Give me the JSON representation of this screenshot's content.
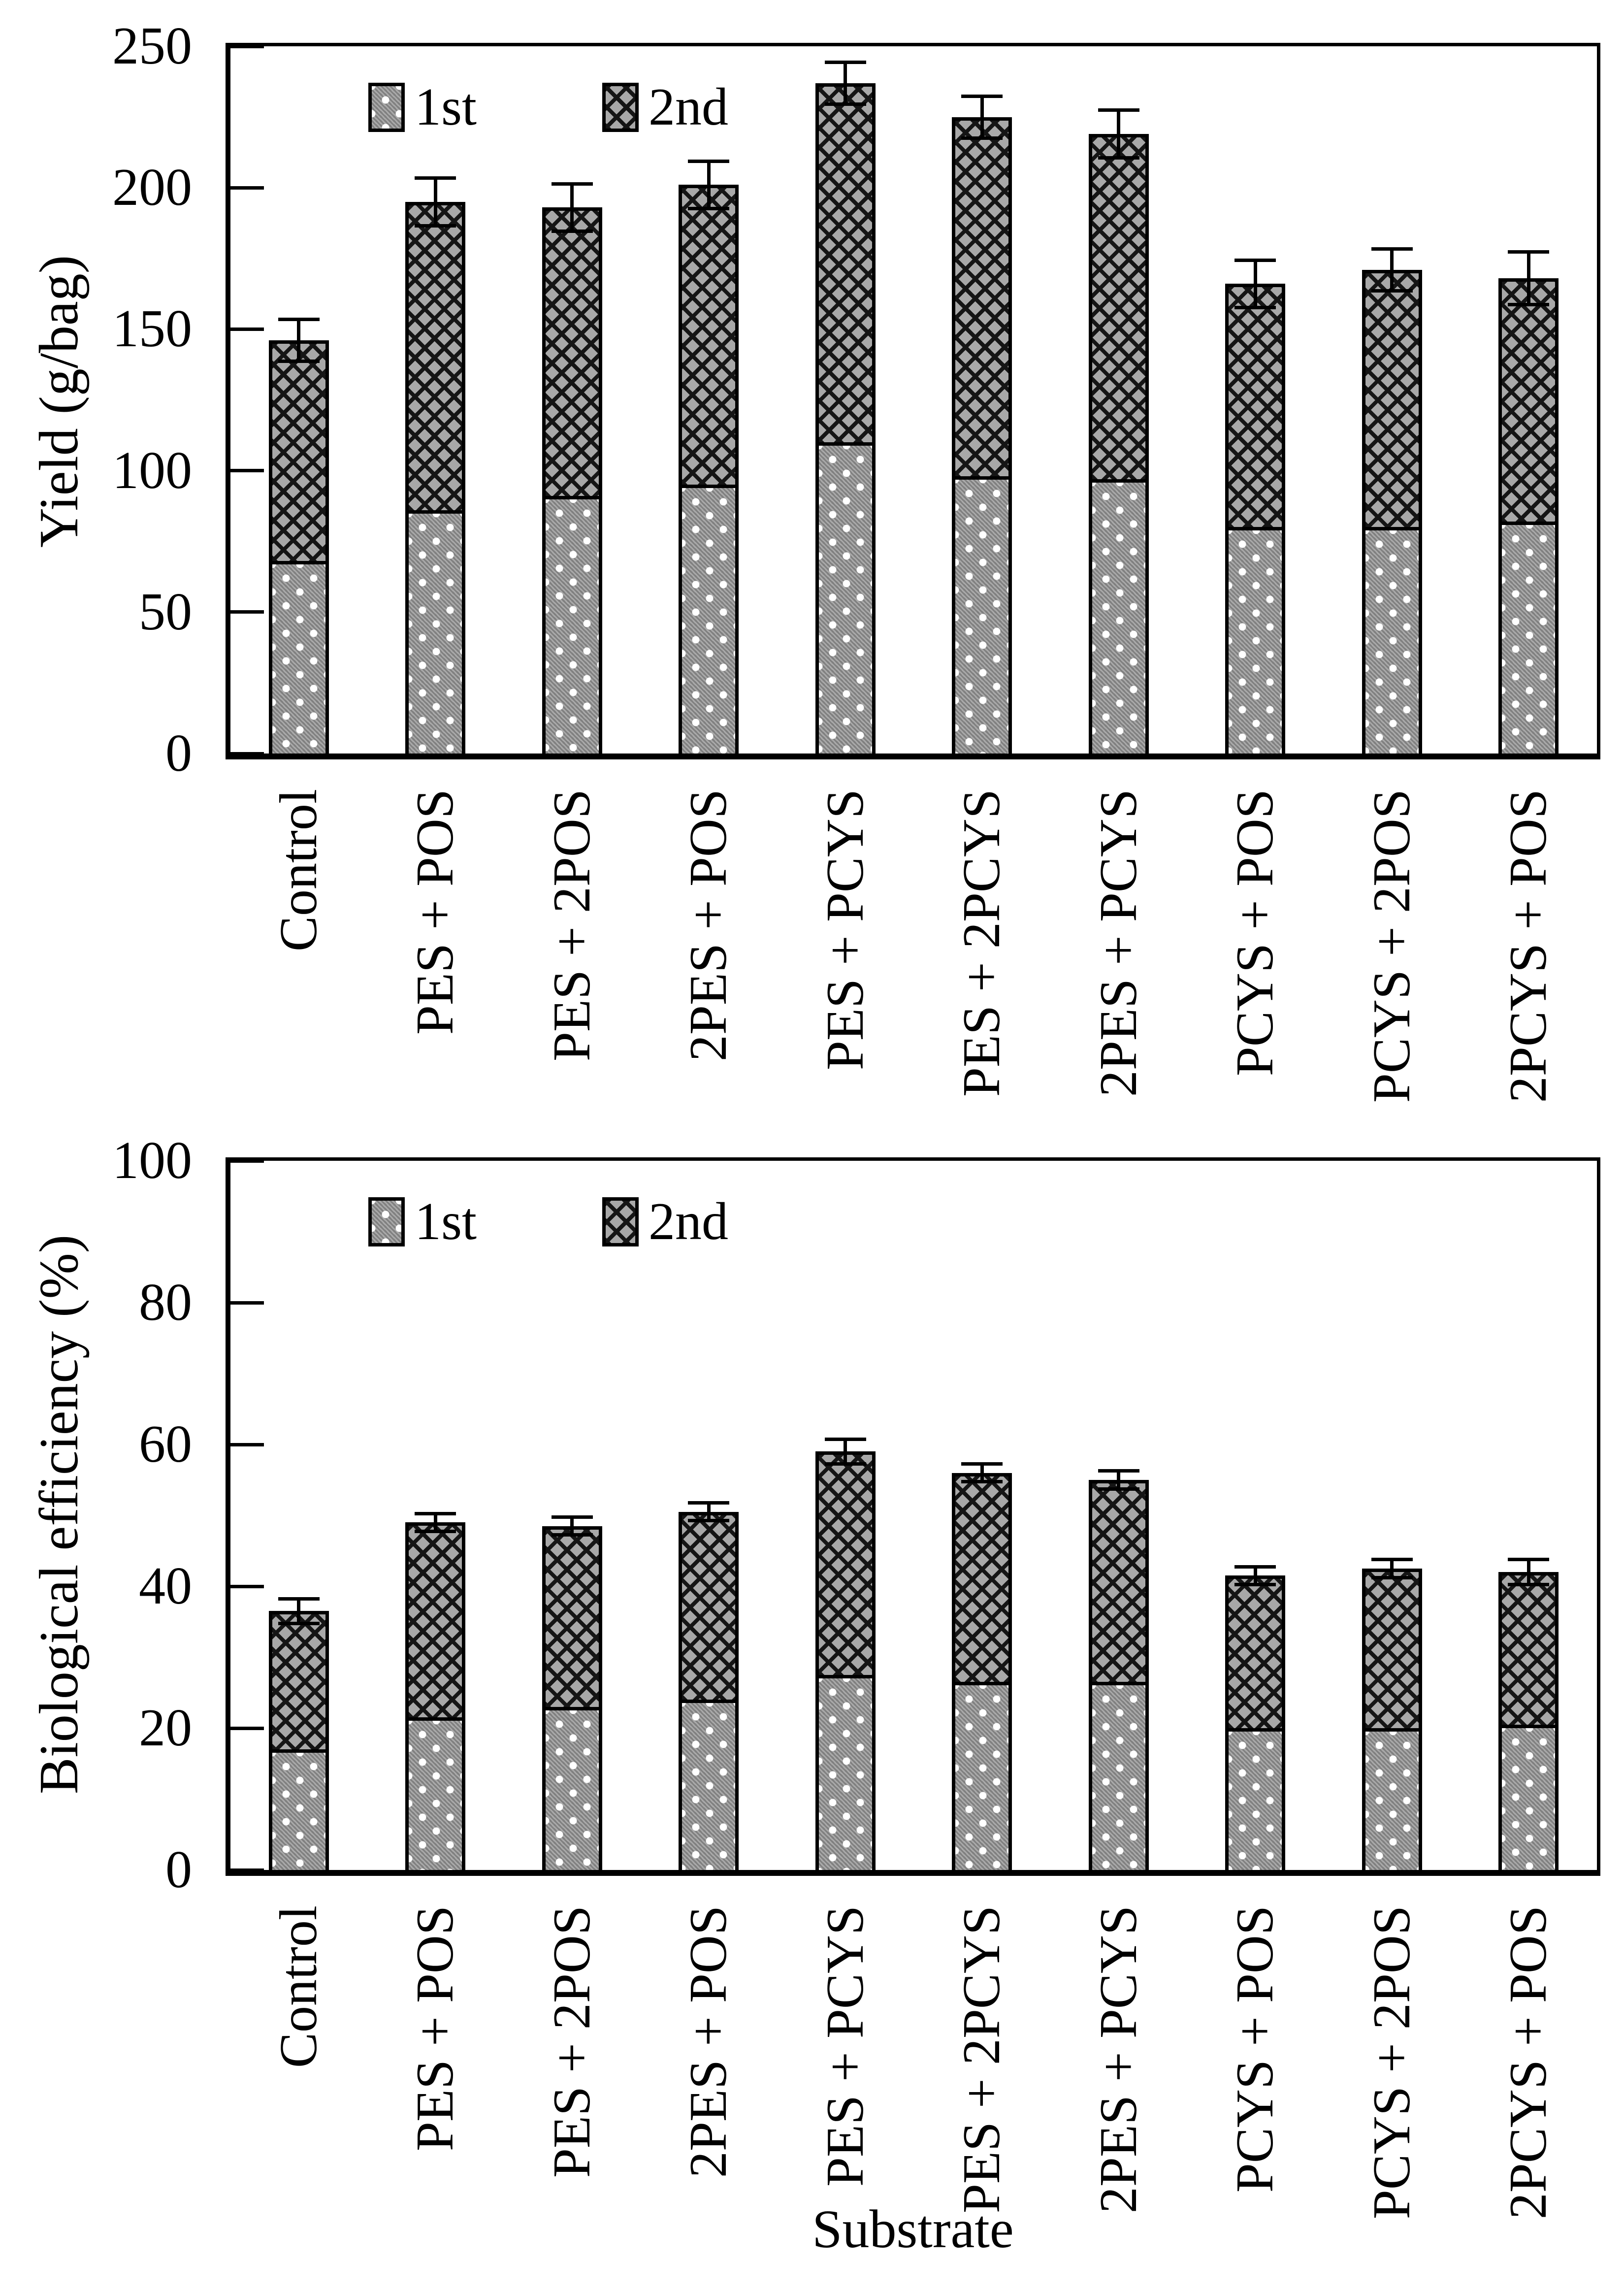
{
  "figure": {
    "background": "#ffffff",
    "text_color": "#000000",
    "legend": {
      "first": "1st",
      "second": "2nd"
    }
  },
  "chart_data": [
    {
      "type": "bar",
      "stacked": true,
      "title": "",
      "ylabel": "Yield (g/bag)",
      "xlabel": "",
      "ylim": [
        0,
        250
      ],
      "yticks": [
        0,
        50,
        100,
        150,
        200,
        250
      ],
      "grid": false,
      "legend_position": "inside-top-left",
      "legend_entries": [
        "1st",
        "2nd"
      ],
      "categories": [
        "Control",
        "PES + POS",
        "PES + 2POS",
        "2PES + POS",
        "PES + PCYS",
        "PES + 2PCYS",
        "2PES + PCYS",
        "PCYS + POS",
        "PCYS + 2POS",
        "2PCYS + POS"
      ],
      "series": [
        {
          "name": "1st",
          "values": [
            68,
            86,
            91,
            95,
            110,
            98,
            97,
            80,
            80,
            82
          ]
        },
        {
          "name": "2nd",
          "values": [
            78,
            109,
            102,
            106,
            127,
            127,
            122,
            86,
            91,
            86
          ]
        }
      ],
      "totals": [
        146,
        195,
        193,
        201,
        237,
        225,
        219,
        166,
        171,
        168
      ],
      "error_bars": [
        8,
        9,
        9,
        9,
        8,
        8,
        9,
        9,
        8,
        10
      ]
    },
    {
      "type": "bar",
      "stacked": true,
      "title": "",
      "ylabel": "Biological efficiency (%)",
      "xlabel": "Substrate",
      "ylim": [
        0,
        100
      ],
      "yticks": [
        0,
        20,
        40,
        60,
        80,
        100
      ],
      "grid": false,
      "legend_position": "inside-top-left",
      "legend_entries": [
        "1st",
        "2nd"
      ],
      "categories": [
        "Control",
        "PES + POS",
        "PES + 2POS",
        "2PES + POS",
        "PES + PCYS",
        "PES + 2PCYS",
        "2PES + PCYS",
        "PCYS + POS",
        "PCYS + 2POS",
        "2PCYS + POS"
      ],
      "series": [
        {
          "name": "1st",
          "values": [
            17,
            21.5,
            23,
            24,
            27.5,
            26.5,
            26.5,
            20,
            20,
            20.5
          ]
        },
        {
          "name": "2nd",
          "values": [
            19.5,
            27.5,
            25.5,
            26.5,
            31.5,
            29.5,
            28.5,
            21.5,
            22.5,
            21.5
          ]
        }
      ],
      "totals": [
        36.5,
        49,
        48.5,
        50.5,
        59,
        56,
        55,
        41.5,
        42.5,
        42
      ],
      "error_bars": [
        2,
        1.5,
        1.5,
        1.5,
        2,
        1.5,
        1.5,
        1.5,
        1.5,
        2
      ]
    }
  ]
}
